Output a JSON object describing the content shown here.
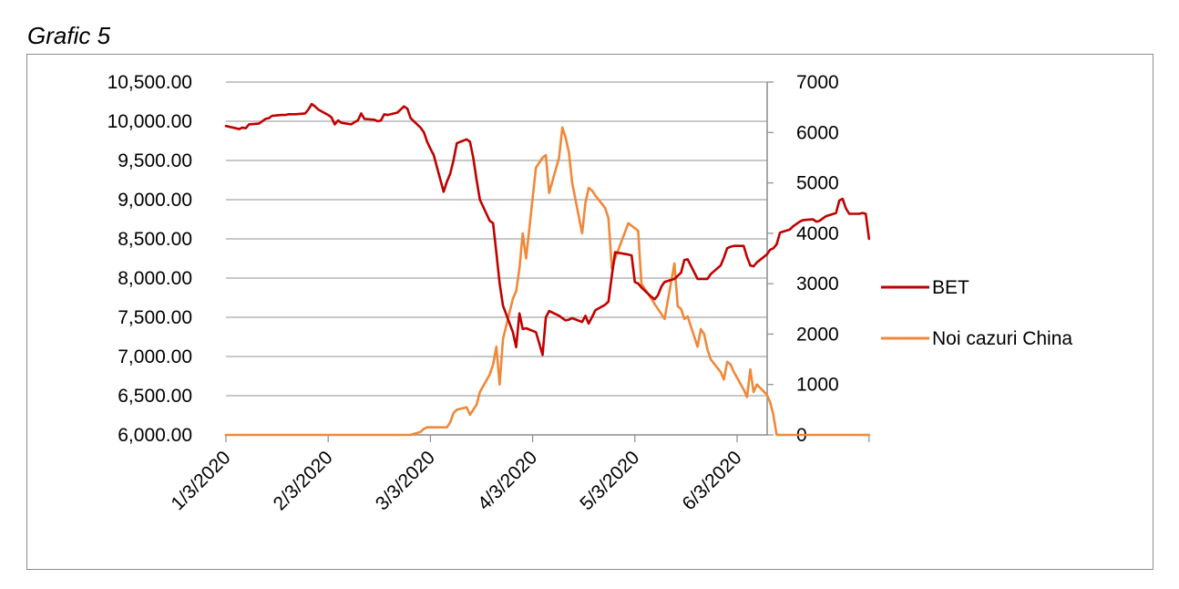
{
  "caption": "Grafic 5",
  "chart_data": {
    "type": "line",
    "title": "",
    "xlabel": "",
    "ylabel": "",
    "x_ticks": [
      "1/3/2020",
      "2/3/2020",
      "3/3/2020",
      "4/3/2020",
      "5/3/2020",
      "6/3/2020"
    ],
    "y_left": {
      "lim": [
        6000,
        10500
      ],
      "ticks": [
        "10,500.00",
        "10,000.00",
        "9,500.00",
        "9,000.00",
        "8,500.00",
        "8,000.00",
        "7,500.00",
        "7,000.00",
        "6,500.00",
        "6,000.00"
      ]
    },
    "y_right": {
      "lim": [
        0,
        7000
      ],
      "ticks": [
        "7000",
        "6000",
        "5000",
        "4000",
        "3000",
        "2000",
        "1000",
        "0"
      ]
    },
    "grid": true,
    "legend_position": "right",
    "series": [
      {
        "name": "BET",
        "axis": "left",
        "color": "#c00000",
        "points": [
          [
            "2020-01-03",
            9940
          ],
          [
            "2020-01-06",
            9910
          ],
          [
            "2020-01-07",
            9900
          ],
          [
            "2020-01-08",
            9920
          ],
          [
            "2020-01-09",
            9910
          ],
          [
            "2020-01-10",
            9960
          ],
          [
            "2020-01-13",
            9970
          ],
          [
            "2020-01-14",
            10000
          ],
          [
            "2020-01-15",
            10030
          ],
          [
            "2020-01-16",
            10040
          ],
          [
            "2020-01-17",
            10070
          ],
          [
            "2020-01-20",
            10080
          ],
          [
            "2020-01-21",
            10080
          ],
          [
            "2020-01-22",
            10090
          ],
          [
            "2020-01-23",
            10090
          ],
          [
            "2020-01-24",
            10090
          ],
          [
            "2020-01-27",
            10100
          ],
          [
            "2020-01-28",
            10150
          ],
          [
            "2020-01-29",
            10220
          ],
          [
            "2020-01-30",
            10190
          ],
          [
            "2020-01-31",
            10150
          ],
          [
            "2020-02-03",
            10080
          ],
          [
            "2020-02-04",
            10050
          ],
          [
            "2020-02-05",
            9960
          ],
          [
            "2020-02-06",
            10010
          ],
          [
            "2020-02-07",
            9980
          ],
          [
            "2020-02-10",
            9960
          ],
          [
            "2020-02-11",
            9990
          ],
          [
            "2020-02-12",
            10010
          ],
          [
            "2020-02-13",
            10100
          ],
          [
            "2020-02-14",
            10030
          ],
          [
            "2020-02-17",
            10020
          ],
          [
            "2020-02-18",
            10000
          ],
          [
            "2020-02-19",
            10010
          ],
          [
            "2020-02-20",
            10090
          ],
          [
            "2020-02-21",
            10080
          ],
          [
            "2020-02-24",
            10110
          ],
          [
            "2020-02-25",
            10150
          ],
          [
            "2020-02-26",
            10190
          ],
          [
            "2020-02-27",
            10160
          ],
          [
            "2020-02-28",
            10040
          ],
          [
            "2020-03-02",
            9920
          ],
          [
            "2020-03-03",
            9860
          ],
          [
            "2020-03-04",
            9740
          ],
          [
            "2020-03-05",
            9650
          ],
          [
            "2020-03-06",
            9570
          ],
          [
            "2020-03-09",
            9100
          ],
          [
            "2020-03-10",
            9230
          ],
          [
            "2020-03-11",
            9330
          ],
          [
            "2020-03-12",
            9500
          ],
          [
            "2020-03-13",
            9720
          ],
          [
            "2020-03-16",
            9770
          ],
          [
            "2020-03-17",
            9740
          ],
          [
            "2020-03-18",
            9530
          ],
          [
            "2020-03-19",
            9250
          ],
          [
            "2020-03-20",
            9000
          ],
          [
            "2020-03-23",
            8730
          ],
          [
            "2020-03-24",
            8700
          ],
          [
            "2020-03-25",
            8320
          ],
          [
            "2020-03-26",
            7930
          ],
          [
            "2020-03-27",
            7650
          ],
          [
            "2020-03-30",
            7310
          ],
          [
            "2020-03-31",
            7120
          ],
          [
            "2020-04-01",
            7550
          ],
          [
            "2020-04-02",
            7350
          ],
          [
            "2020-04-03",
            7360
          ],
          [
            "2020-04-06",
            7310
          ],
          [
            "2020-04-07",
            7170
          ],
          [
            "2020-04-08",
            7020
          ],
          [
            "2020-04-09",
            7500
          ],
          [
            "2020-04-10",
            7580
          ],
          [
            "2020-04-13",
            7520
          ],
          [
            "2020-04-14",
            7490
          ],
          [
            "2020-04-15",
            7460
          ],
          [
            "2020-04-16",
            7470
          ],
          [
            "2020-04-17",
            7490
          ],
          [
            "2020-04-20",
            7440
          ],
          [
            "2020-04-21",
            7520
          ],
          [
            "2020-04-22",
            7420
          ],
          [
            "2020-04-23",
            7500
          ],
          [
            "2020-04-24",
            7590
          ],
          [
            "2020-04-27",
            7660
          ],
          [
            "2020-04-28",
            7700
          ],
          [
            "2020-04-29",
            8030
          ],
          [
            "2020-04-30",
            8330
          ],
          [
            "2020-05-04",
            8300
          ],
          [
            "2020-05-05",
            8290
          ],
          [
            "2020-05-06",
            7950
          ],
          [
            "2020-05-07",
            7930
          ],
          [
            "2020-05-08",
            7880
          ],
          [
            "2020-05-11",
            7760
          ],
          [
            "2020-05-12",
            7730
          ],
          [
            "2020-05-13",
            7780
          ],
          [
            "2020-05-14",
            7890
          ],
          [
            "2020-05-15",
            7950
          ],
          [
            "2020-05-18",
            7990
          ],
          [
            "2020-05-19",
            8030
          ],
          [
            "2020-05-20",
            8070
          ],
          [
            "2020-05-21",
            8230
          ],
          [
            "2020-05-22",
            8240
          ],
          [
            "2020-05-25",
            7990
          ],
          [
            "2020-05-26",
            7990
          ],
          [
            "2020-05-27",
            7990
          ],
          [
            "2020-05-28",
            7990
          ],
          [
            "2020-05-29",
            8050
          ],
          [
            "2020-06-01",
            8160
          ],
          [
            "2020-06-02",
            8260
          ],
          [
            "2020-06-03",
            8380
          ],
          [
            "2020-06-04",
            8400
          ],
          [
            "2020-06-05",
            8410
          ],
          [
            "2020-06-08",
            8410
          ],
          [
            "2020-06-09",
            8270
          ],
          [
            "2020-06-10",
            8160
          ],
          [
            "2020-06-11",
            8150
          ],
          [
            "2020-06-12",
            8200
          ],
          [
            "2020-06-15",
            8300
          ],
          [
            "2020-06-16",
            8360
          ],
          [
            "2020-06-17",
            8380
          ],
          [
            "2020-06-18",
            8430
          ],
          [
            "2020-06-19",
            8580
          ],
          [
            "2020-06-22",
            8620
          ],
          [
            "2020-06-23",
            8660
          ],
          [
            "2020-06-24",
            8690
          ],
          [
            "2020-06-25",
            8720
          ],
          [
            "2020-06-26",
            8740
          ],
          [
            "2020-06-29",
            8750
          ],
          [
            "2020-06-30",
            8720
          ],
          [
            "2020-07-01",
            8730
          ],
          [
            "2020-07-02",
            8760
          ],
          [
            "2020-07-03",
            8790
          ],
          [
            "2020-07-06",
            8830
          ],
          [
            "2020-07-07",
            8990
          ],
          [
            "2020-07-08",
            9010
          ],
          [
            "2020-07-09",
            8890
          ],
          [
            "2020-07-10",
            8820
          ],
          [
            "2020-07-13",
            8820
          ],
          [
            "2020-07-14",
            8830
          ],
          [
            "2020-07-15",
            8820
          ],
          [
            "2020-07-16",
            8500
          ]
        ]
      },
      {
        "name": "Noi cazuri China",
        "axis": "right",
        "color": "#f0883a",
        "points": [
          [
            "2020-01-03",
            0
          ],
          [
            "2020-01-10",
            0
          ],
          [
            "2020-01-17",
            0
          ],
          [
            "2020-01-24",
            0
          ],
          [
            "2020-01-31",
            0
          ],
          [
            "2020-02-07",
            0
          ],
          [
            "2020-02-14",
            0
          ],
          [
            "2020-02-21",
            0
          ],
          [
            "2020-02-24",
            0
          ],
          [
            "2020-02-25",
            0
          ],
          [
            "2020-02-26",
            0
          ],
          [
            "2020-02-27",
            0
          ],
          [
            "2020-02-28",
            0
          ],
          [
            "2020-03-02",
            60
          ],
          [
            "2020-03-03",
            120
          ],
          [
            "2020-03-04",
            150
          ],
          [
            "2020-03-05",
            150
          ],
          [
            "2020-03-06",
            150
          ],
          [
            "2020-03-09",
            150
          ],
          [
            "2020-03-10",
            150
          ],
          [
            "2020-03-11",
            250
          ],
          [
            "2020-03-12",
            430
          ],
          [
            "2020-03-13",
            500
          ],
          [
            "2020-03-16",
            550
          ],
          [
            "2020-03-17",
            400
          ],
          [
            "2020-03-18",
            500
          ],
          [
            "2020-03-19",
            600
          ],
          [
            "2020-03-20",
            850
          ],
          [
            "2020-03-23",
            1200
          ],
          [
            "2020-03-24",
            1400
          ],
          [
            "2020-03-25",
            1750
          ],
          [
            "2020-03-26",
            1000
          ],
          [
            "2020-03-27",
            1900
          ],
          [
            "2020-03-30",
            2700
          ],
          [
            "2020-03-31",
            2850
          ],
          [
            "2020-04-01",
            3300
          ],
          [
            "2020-04-02",
            4000
          ],
          [
            "2020-04-03",
            3500
          ],
          [
            "2020-04-06",
            5300
          ],
          [
            "2020-04-07",
            5400
          ],
          [
            "2020-04-08",
            5500
          ],
          [
            "2020-04-09",
            5550
          ],
          [
            "2020-04-10",
            4800
          ],
          [
            "2020-04-13",
            5500
          ],
          [
            "2020-04-14",
            6100
          ],
          [
            "2020-04-15",
            5900
          ],
          [
            "2020-04-16",
            5600
          ],
          [
            "2020-04-17",
            5000
          ],
          [
            "2020-04-20",
            4000
          ],
          [
            "2020-04-21",
            4600
          ],
          [
            "2020-04-22",
            4900
          ],
          [
            "2020-04-23",
            4850
          ],
          [
            "2020-04-24",
            4750
          ],
          [
            "2020-04-27",
            4500
          ],
          [
            "2020-04-28",
            4300
          ],
          [
            "2020-04-29",
            3300
          ],
          [
            "2020-04-30",
            3500
          ],
          [
            "2020-05-04",
            4200
          ],
          [
            "2020-05-05",
            4150
          ],
          [
            "2020-05-06",
            4100
          ],
          [
            "2020-05-07",
            4050
          ],
          [
            "2020-05-08",
            3000
          ],
          [
            "2020-05-11",
            2700
          ],
          [
            "2020-05-12",
            2600
          ],
          [
            "2020-05-13",
            2500
          ],
          [
            "2020-05-14",
            2400
          ],
          [
            "2020-05-15",
            2300
          ],
          [
            "2020-05-18",
            3400
          ],
          [
            "2020-05-19",
            2550
          ],
          [
            "2020-05-20",
            2500
          ],
          [
            "2020-05-21",
            2300
          ],
          [
            "2020-05-22",
            2350
          ],
          [
            "2020-05-25",
            1750
          ],
          [
            "2020-05-26",
            2100
          ],
          [
            "2020-05-27",
            2000
          ],
          [
            "2020-05-28",
            1700
          ],
          [
            "2020-05-29",
            1500
          ],
          [
            "2020-06-01",
            1250
          ],
          [
            "2020-06-02",
            1100
          ],
          [
            "2020-06-03",
            1450
          ],
          [
            "2020-06-04",
            1400
          ],
          [
            "2020-06-05",
            1250
          ],
          [
            "2020-06-08",
            900
          ],
          [
            "2020-06-09",
            750
          ],
          [
            "2020-06-10",
            1300
          ],
          [
            "2020-06-11",
            850
          ],
          [
            "2020-06-12",
            1000
          ],
          [
            "2020-06-15",
            800
          ],
          [
            "2020-06-16",
            650
          ],
          [
            "2020-06-17",
            400
          ],
          [
            "2020-06-18",
            0
          ],
          [
            "2020-06-19",
            0
          ],
          [
            "2020-06-26",
            0
          ],
          [
            "2020-07-03",
            0
          ],
          [
            "2020-07-10",
            0
          ],
          [
            "2020-07-16",
            0
          ]
        ]
      }
    ]
  }
}
